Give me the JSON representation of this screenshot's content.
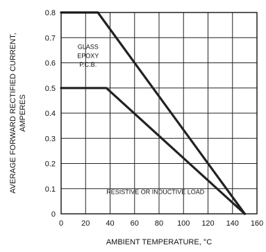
{
  "chart_data": {
    "type": "line",
    "title": "",
    "xlabel": "AMBIENT TEMPERATURE, °C",
    "ylabel_line1": "AVERAGE FORWARD RECTIFIED CURRENT,",
    "ylabel_line2": "AMPERES",
    "xlim": [
      0,
      160
    ],
    "ylim": [
      0,
      0.8
    ],
    "x_ticks": [
      "0",
      "20",
      "40",
      "60",
      "80",
      "100",
      "120",
      "140",
      "160"
    ],
    "y_ticks": [
      "0",
      "0.1",
      "0.2",
      "0.3",
      "0.4",
      "0.5",
      "0.6",
      "0.7",
      "0.8"
    ],
    "grid": true,
    "series": [
      {
        "x": [
          0,
          30,
          150
        ],
        "y": [
          0.8,
          0.8,
          0
        ]
      },
      {
        "x": [
          0,
          37,
          150
        ],
        "y": [
          0.5,
          0.5,
          0
        ]
      }
    ],
    "annotations": {
      "glass_epoxy_line1": "GLASS",
      "glass_epoxy_line2": "EPOXY",
      "glass_epoxy_line3": "P.C.B.",
      "load": "RESISTIVE OR INDUCTIVE LOAD"
    },
    "colors": {
      "line": "#222222",
      "grid": "#222222",
      "background": "#ffffff"
    }
  }
}
